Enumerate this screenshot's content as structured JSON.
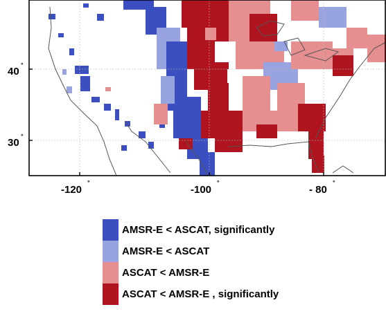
{
  "map": {
    "lat_labels": [
      {
        "value": "40",
        "deg": "°"
      },
      {
        "value": "30",
        "deg": "°"
      }
    ],
    "lon_labels": [
      {
        "value": "-120",
        "deg": "°"
      },
      {
        "value": "-100",
        "deg": "°"
      },
      {
        "value": "- 80",
        "deg": "°"
      }
    ]
  },
  "legend": {
    "items": [
      {
        "label": "AMSR-E < ASCAT, significantly",
        "color": "#3b4fc0"
      },
      {
        "label": "AMSR-E < ASCAT",
        "color": "#98a4e0"
      },
      {
        "label": "ASCAT < AMSR-E",
        "color": "#e58f90"
      },
      {
        "label": "ASCAT < AMSR-E , significantly",
        "color": "#b0141e"
      }
    ]
  }
}
